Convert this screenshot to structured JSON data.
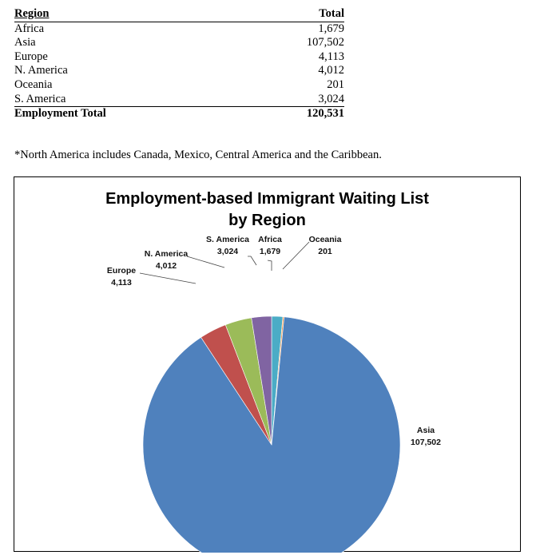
{
  "table": {
    "headers": {
      "region": "Region",
      "total": "Total"
    },
    "rows": [
      {
        "region": "Africa",
        "total": "1,679"
      },
      {
        "region": "Asia",
        "total": "107,502"
      },
      {
        "region": "Europe",
        "total": "4,113"
      },
      {
        "region": "N. America",
        "total": "4,012"
      },
      {
        "region": "Oceania",
        "total": "201"
      },
      {
        "region": "S. America",
        "total": "3,024"
      }
    ],
    "footer": {
      "label": "Employment Total",
      "value": "120,531"
    }
  },
  "note": "*North America includes Canada, Mexico, Central America and the Caribbean.",
  "chart_data": {
    "type": "pie",
    "title": "Employment-based Immigrant Waiting List by Region",
    "title_lines": [
      "Employment-based Immigrant Waiting List",
      "by Region"
    ],
    "slices": [
      {
        "label": "Africa",
        "value": 1679,
        "value_text": "1,679",
        "color": "#4bacc6"
      },
      {
        "label": "Oceania",
        "value": 201,
        "value_text": "201",
        "color": "#f79646"
      },
      {
        "label": "Asia",
        "value": 107502,
        "value_text": "107,502",
        "color": "#4f81bd"
      },
      {
        "label": "Europe",
        "value": 4113,
        "value_text": "4,113",
        "color": "#c0504d"
      },
      {
        "label": "N. America",
        "value": 4012,
        "value_text": "4,012",
        "color": "#9bbb59"
      },
      {
        "label": "S. America",
        "value": 3024,
        "value_text": "3,024",
        "color": "#8064a2"
      }
    ]
  }
}
